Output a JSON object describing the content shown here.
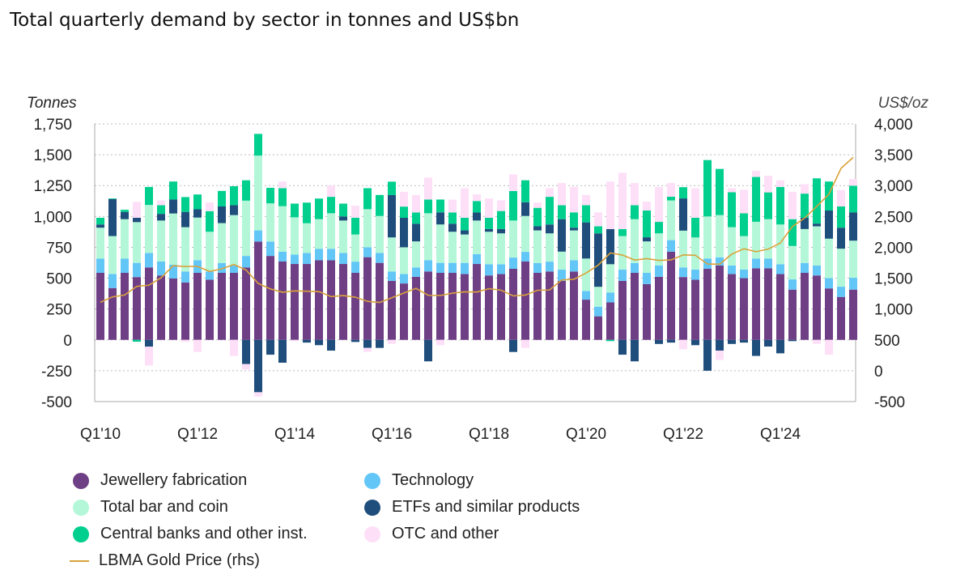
{
  "title": "Total quarterly demand by sector in tonnes and US$bn",
  "chart_data": {
    "type": "bar",
    "stacked": true,
    "title": "Total quarterly demand by sector in tonnes and US$bn",
    "ylabel": "Tonnes",
    "y2label": "US$/oz",
    "ylim": [
      -500,
      1750
    ],
    "y2lim": [
      -500,
      4000
    ],
    "yticks": [
      "1,750",
      "1,500",
      "1,250",
      "1,000",
      "750",
      "500",
      "250",
      "0",
      "-250",
      "-500"
    ],
    "y2ticks": [
      "4,000",
      "3,500",
      "3,000",
      "2,500",
      "2,000",
      "1,500",
      "1,000",
      "500",
      "0",
      "-500"
    ],
    "xtick_labels": [
      "Q1'10",
      "Q1'12",
      "Q1'14",
      "Q1'16",
      "Q1'18",
      "Q1'20",
      "Q1'22",
      "Q1'24"
    ],
    "grid": true,
    "legend_placement": "bottom",
    "categories": [
      "Q1'10",
      "Q2'10",
      "Q3'10",
      "Q4'10",
      "Q1'11",
      "Q2'11",
      "Q3'11",
      "Q4'11",
      "Q1'12",
      "Q2'12",
      "Q3'12",
      "Q4'12",
      "Q1'13",
      "Q2'13",
      "Q3'13",
      "Q4'13",
      "Q1'14",
      "Q2'14",
      "Q3'14",
      "Q4'14",
      "Q1'15",
      "Q2'15",
      "Q3'15",
      "Q4'15",
      "Q1'16",
      "Q2'16",
      "Q3'16",
      "Q4'16",
      "Q1'17",
      "Q2'17",
      "Q3'17",
      "Q4'17",
      "Q1'18",
      "Q2'18",
      "Q3'18",
      "Q4'18",
      "Q1'19",
      "Q2'19",
      "Q3'19",
      "Q4'19",
      "Q1'20",
      "Q2'20",
      "Q3'20",
      "Q4'20",
      "Q1'21",
      "Q2'21",
      "Q3'21",
      "Q4'21",
      "Q1'22",
      "Q2'22",
      "Q3'22",
      "Q4'22",
      "Q1'23",
      "Q2'23",
      "Q3'23",
      "Q4'23",
      "Q1'24",
      "Q2'24",
      "Q3'24",
      "Q4'24",
      "Q1'25",
      "Q2'25",
      "Q3'25"
    ],
    "series": [
      {
        "name": "Jewellery fabrication",
        "color": "#6f3f86",
        "values": [
          543,
          420,
          543,
          509,
          587,
          522,
          498,
          465,
          543,
          487,
          543,
          543,
          587,
          796,
          680,
          635,
          615,
          615,
          645,
          645,
          615,
          543,
          670,
          624,
          478,
          457,
          511,
          554,
          543,
          543,
          533,
          615,
          522,
          533,
          576,
          635,
          543,
          554,
          478,
          554,
          326,
          191,
          304,
          478,
          543,
          452,
          511,
          715,
          509,
          487,
          576,
          602,
          533,
          500,
          580,
          580,
          533,
          407,
          543,
          522,
          417,
          348,
          407
        ]
      },
      {
        "name": "Technology",
        "color": "#62c6f7",
        "values": [
          115,
          113,
          115,
          115,
          117,
          113,
          111,
          89,
          102,
          67,
          80,
          61,
          93,
          91,
          117,
          80,
          76,
          89,
          93,
          93,
          89,
          91,
          80,
          80,
          76,
          76,
          76,
          91,
          81,
          81,
          91,
          80,
          91,
          80,
          91,
          78,
          80,
          80,
          91,
          91,
          70,
          78,
          80,
          91,
          80,
          91,
          91,
          93,
          78,
          83,
          83,
          67,
          70,
          70,
          78,
          78,
          80,
          83,
          80,
          80,
          83,
          83,
          96
        ]
      },
      {
        "name": "Total bar and coin",
        "color": "#b3f7d8",
        "values": [
          251,
          308,
          320,
          330,
          389,
          332,
          415,
          359,
          346,
          322,
          323,
          407,
          448,
          606,
          309,
          368,
          302,
          241,
          240,
          288,
          263,
          220,
          309,
          300,
          276,
          217,
          211,
          381,
          311,
          252,
          230,
          272,
          263,
          250,
          300,
          291,
          264,
          229,
          146,
          242,
          263,
          161,
          229,
          272,
          355,
          255,
          261,
          322,
          298,
          260,
          341,
          342,
          310,
          271,
          299,
          320,
          322,
          271,
          275,
          318,
          320,
          308,
          301
        ]
      },
      {
        "name": "ETFs and similar products",
        "color": "#1f4e7c",
        "values": [
          26,
          300,
          59,
          35,
          -55,
          54,
          113,
          124,
          67,
          0,
          135,
          80,
          -196,
          -424,
          -120,
          -185,
          0,
          -22,
          -43,
          -87,
          33,
          -17,
          -65,
          -65,
          343,
          239,
          143,
          -174,
          98,
          65,
          33,
          65,
          22,
          35,
          -98,
          111,
          33,
          72,
          263,
          22,
          293,
          433,
          285,
          -120,
          -174,
          33,
          -33,
          -22,
          261,
          -43,
          -250,
          -87,
          -33,
          -22,
          -130,
          -54,
          -109,
          -10,
          91,
          22,
          228,
          170,
          228
        ]
      },
      {
        "name": "Central banks and other inst.",
        "color": "#00cf8e",
        "values": [
          54,
          5,
          17,
          -15,
          146,
          70,
          146,
          120,
          120,
          167,
          126,
          154,
          165,
          176,
          126,
          146,
          111,
          167,
          167,
          133,
          104,
          135,
          170,
          170,
          109,
          91,
          91,
          111,
          104,
          91,
          102,
          93,
          91,
          146,
          239,
          178,
          150,
          224,
          113,
          124,
          139,
          57,
          -10,
          57,
          113,
          217,
          93,
          30,
          91,
          159,
          457,
          374,
          283,
          185,
          363,
          217,
          304,
          217,
          196,
          367,
          235,
          172,
          217
        ]
      },
      {
        "name": "OTC and other",
        "color": "#fde0f8",
        "values": [
          0,
          0,
          0,
          130,
          -152,
          39,
          0,
          -17,
          -98,
          70,
          0,
          -130,
          -43,
          -35,
          0,
          54,
          -10,
          0,
          0,
          91,
          0,
          98,
          -33,
          0,
          -33,
          120,
          141,
          178,
          -43,
          104,
          239,
          54,
          157,
          87,
          135,
          -65,
          43,
          70,
          180,
          207,
          83,
          113,
          385,
          457,
          180,
          72,
          283,
          111,
          -76,
          239,
          0,
          -76,
          33,
          191,
          50,
          135,
          54,
          222,
          76,
          -33,
          -120,
          133,
          54
        ]
      }
    ],
    "line_series": {
      "name": "LBMA Gold Price (rhs)",
      "axis": "right",
      "color": "#d9a33a",
      "values": [
        1109,
        1197,
        1227,
        1367,
        1386,
        1506,
        1702,
        1688,
        1691,
        1609,
        1652,
        1722,
        1632,
        1415,
        1326,
        1272,
        1293,
        1288,
        1282,
        1201,
        1218,
        1192,
        1124,
        1106,
        1183,
        1260,
        1335,
        1222,
        1219,
        1257,
        1278,
        1275,
        1329,
        1306,
        1213,
        1226,
        1304,
        1309,
        1472,
        1481,
        1583,
        1711,
        1909,
        1874,
        1794,
        1816,
        1789,
        1795,
        1877,
        1871,
        1729,
        1726,
        1890,
        1976,
        1929,
        1971,
        2070,
        2338,
        2474,
        2663,
        2860,
        3280,
        3457
      ]
    }
  },
  "legend": [
    {
      "label": "Jewellery fabrication",
      "color": "#6f3f86",
      "kind": "dot"
    },
    {
      "label": "Technology",
      "color": "#62c6f7",
      "kind": "dot"
    },
    {
      "label": "Total bar and coin",
      "color": "#b3f7d8",
      "kind": "dot"
    },
    {
      "label": "ETFs and similar products",
      "color": "#1f4e7c",
      "kind": "dot"
    },
    {
      "label": "Central banks and other inst.",
      "color": "#00cf8e",
      "kind": "dot"
    },
    {
      "label": "OTC and other",
      "color": "#fde0f8",
      "kind": "dot"
    },
    {
      "label": "LBMA Gold Price (rhs)",
      "color": "#d9a33a",
      "kind": "line"
    }
  ]
}
